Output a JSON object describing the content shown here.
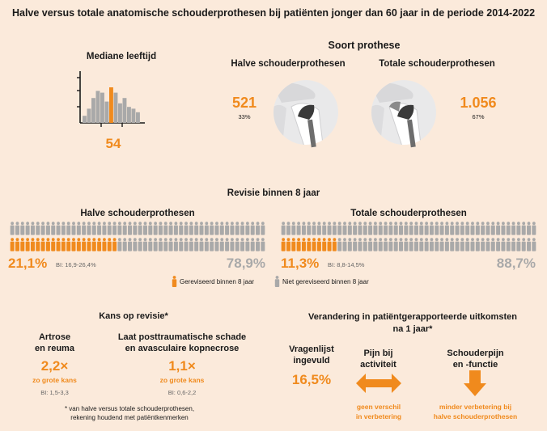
{
  "title": "Halve versus totale anatomische schouderprothesen bij patiënten jonger dan 60 jaar in de periode 2014-2022",
  "age": {
    "heading": "Mediane leeftijd",
    "value": "54",
    "histogram_relative": [
      0.2,
      0.4,
      0.7,
      0.9,
      0.85,
      0.6,
      1.0,
      0.85,
      0.55,
      0.7,
      0.45,
      0.4,
      0.3
    ],
    "median_bar_index": 6
  },
  "prosthesis": {
    "heading": "Soort prothese",
    "half": {
      "label": "Halve schouderprothesen",
      "count": "521",
      "pct": "33%"
    },
    "total": {
      "label": "Totale schouderprothesen",
      "count": "1.056",
      "pct": "67%"
    }
  },
  "revision": {
    "heading": "Revisie binnen 8 jaar",
    "half": {
      "label": "Halve schouderprothesen",
      "pct_revised": "21,1%",
      "ci": "BI: 16,9-26,4%",
      "pct_not": "78,9%",
      "revised_fraction": 0.211
    },
    "total": {
      "label": "Totale schouderprothesen",
      "pct_revised": "11,3%",
      "ci": "BI: 8,8-14,5%",
      "pct_not": "88,7%",
      "revised_fraction": 0.113
    },
    "legend_revised": "Gereviseerd binnen 8 jaar",
    "legend_not": "Niet gereviseerd binnen 8 jaar",
    "colors": {
      "revised": "#f08a1d",
      "not_revised": "#a9a9a9"
    }
  },
  "chance": {
    "heading": "Kans op revisie*",
    "artrose": {
      "label_l1": "Artrose",
      "label_l2": "en reuma",
      "value": "2,2×",
      "sub": "zo grote kans",
      "ci": "BI: 1,5-3,3"
    },
    "trauma": {
      "label_l1": "Laat posttraumatische schade",
      "label_l2": "en avasculaire kopnecrose",
      "value": "1,1×",
      "sub": "zo grote kans",
      "ci": "BI: 0,6-2,2"
    },
    "footnote_l1": "* van halve versus totale schouderprothesen,",
    "footnote_l2": "rekening houdend met patiëntkenmerken"
  },
  "outcomes": {
    "heading_l1": "Verandering in patiëntgerapporteerde uitkomsten",
    "heading_l2": "na 1 jaar*",
    "questionnaire": {
      "label_l1": "Vragenlijst",
      "label_l2": "ingevuld",
      "value": "16,5%"
    },
    "pain": {
      "label_l1": "Pijn bij",
      "label_l2": "activiteit",
      "result_l1": "geen verschil",
      "result_l2": "in verbetering",
      "icon": "double-arrow-icon"
    },
    "function": {
      "label_l1": "Schouderpijn",
      "label_l2": "en -functie",
      "result_l1": "minder verbetering bij",
      "result_l2": "halve schouderprothesen",
      "icon": "down-arrow-icon"
    }
  }
}
